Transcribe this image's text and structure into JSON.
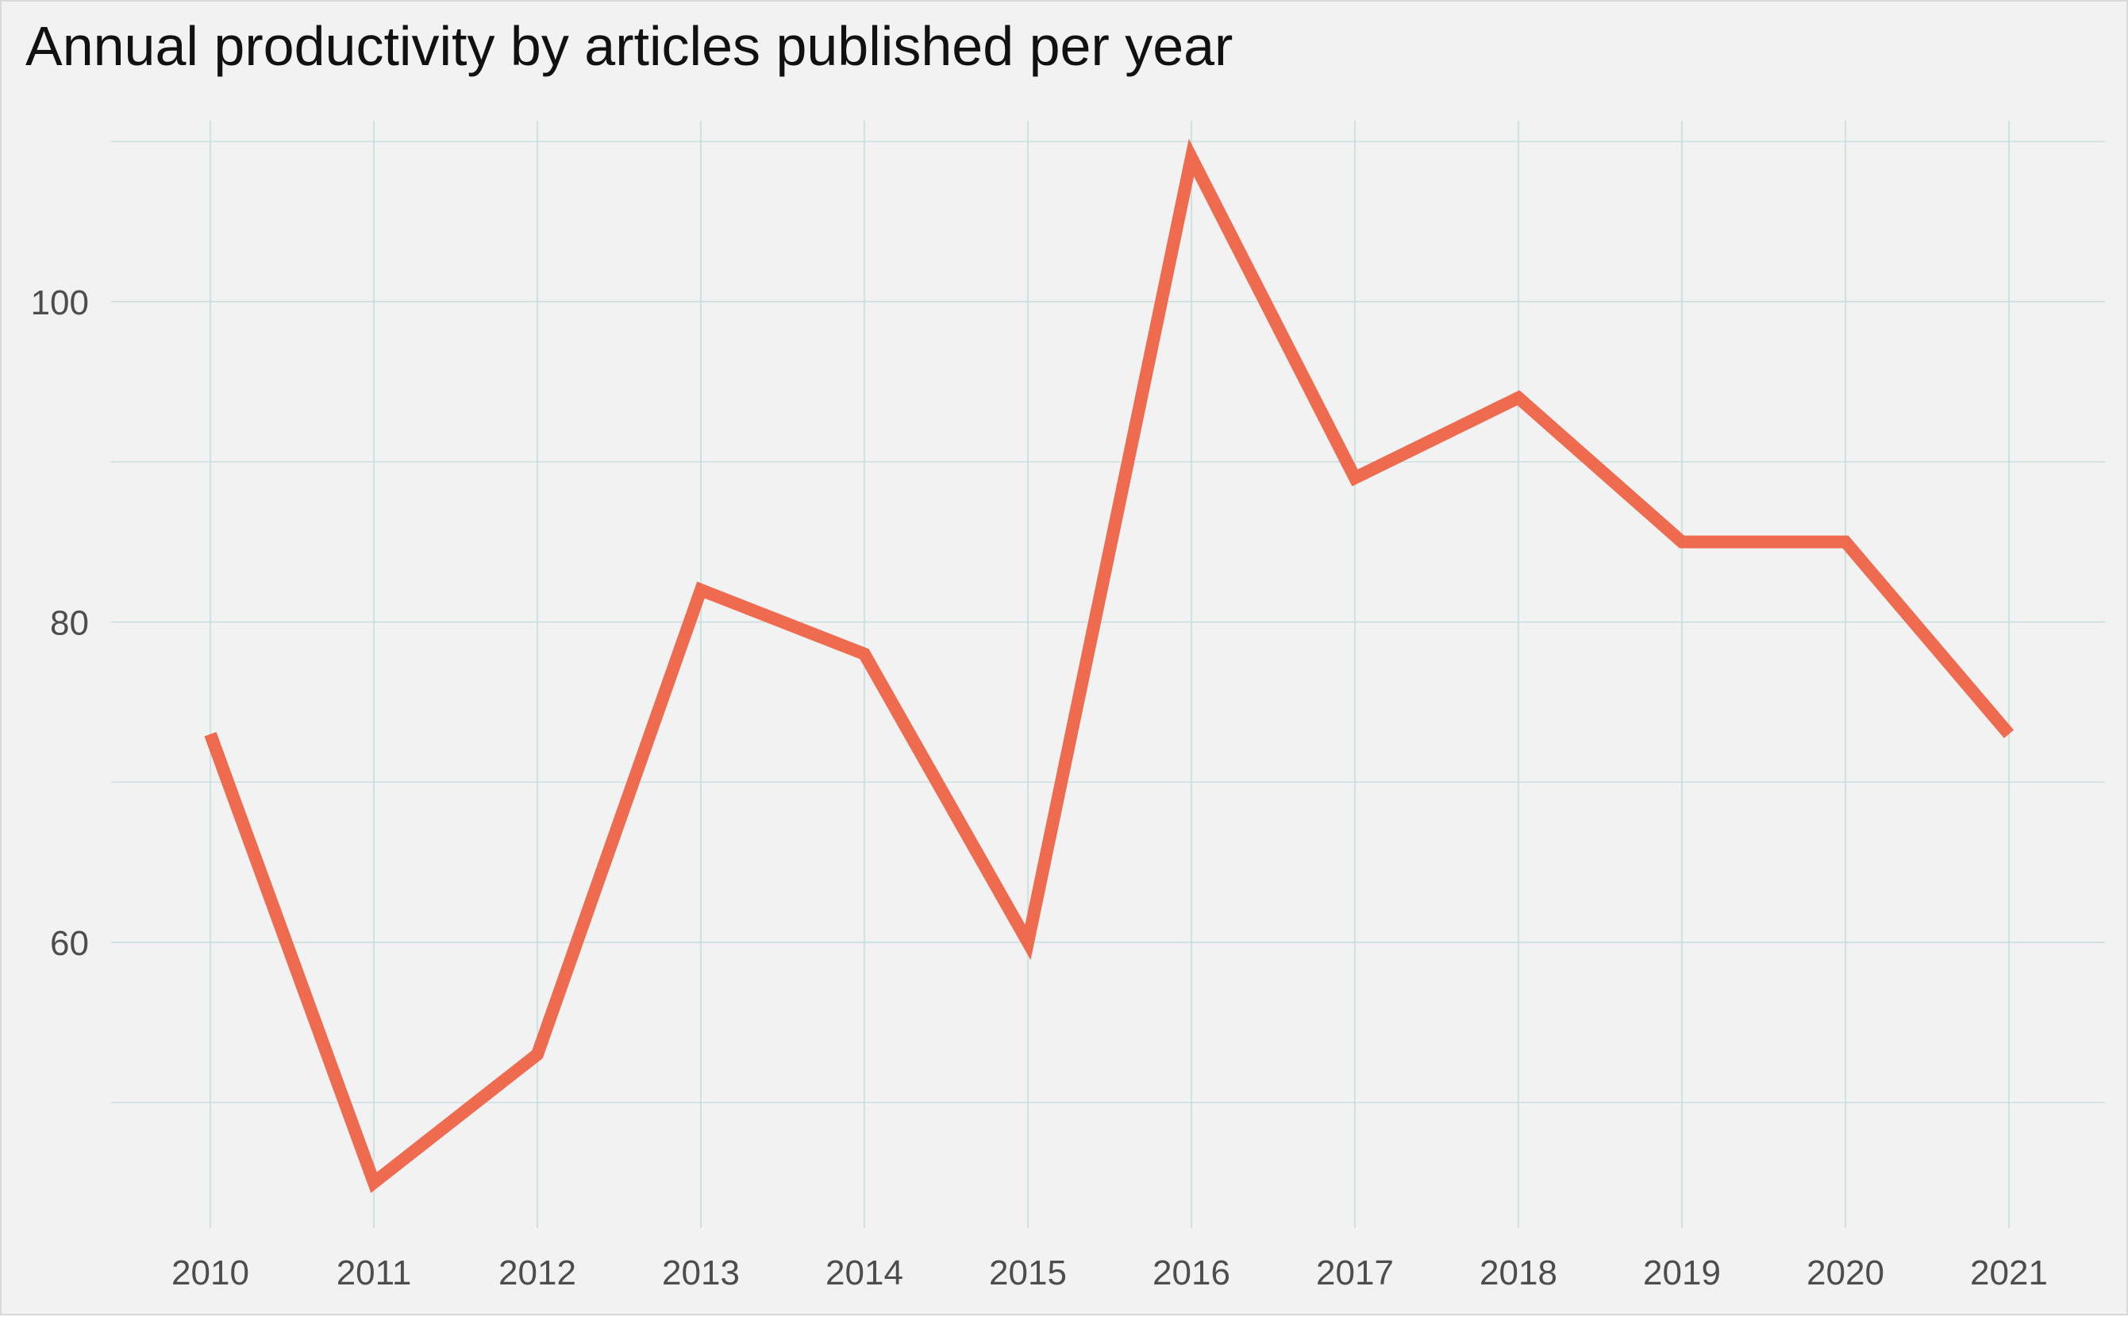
{
  "chart_data": {
    "type": "line",
    "title": "Annual productivity by articles published per year",
    "xlabel": "",
    "ylabel": "",
    "x": [
      2010,
      2011,
      2012,
      2013,
      2014,
      2015,
      2016,
      2017,
      2018,
      2019,
      2020,
      2021
    ],
    "series": [
      {
        "values": [
          73,
          45,
          53,
          82,
          78,
          60,
          109,
          89,
          94,
          85,
          85,
          73
        ]
      }
    ],
    "xticks": [
      "2010",
      "2011",
      "2012",
      "2013",
      "2014",
      "2015",
      "2016",
      "2017",
      "2018",
      "2019",
      "2020",
      "2021"
    ],
    "yticks": [
      60,
      80,
      100
    ],
    "ylim": [
      43,
      110
    ],
    "grid": true,
    "legend": "none",
    "colors": {
      "line": "#ee6b50",
      "grid": "#c5dcdc",
      "background": "#f2f2f2",
      "tick_text": "#4d4d4d"
    }
  }
}
